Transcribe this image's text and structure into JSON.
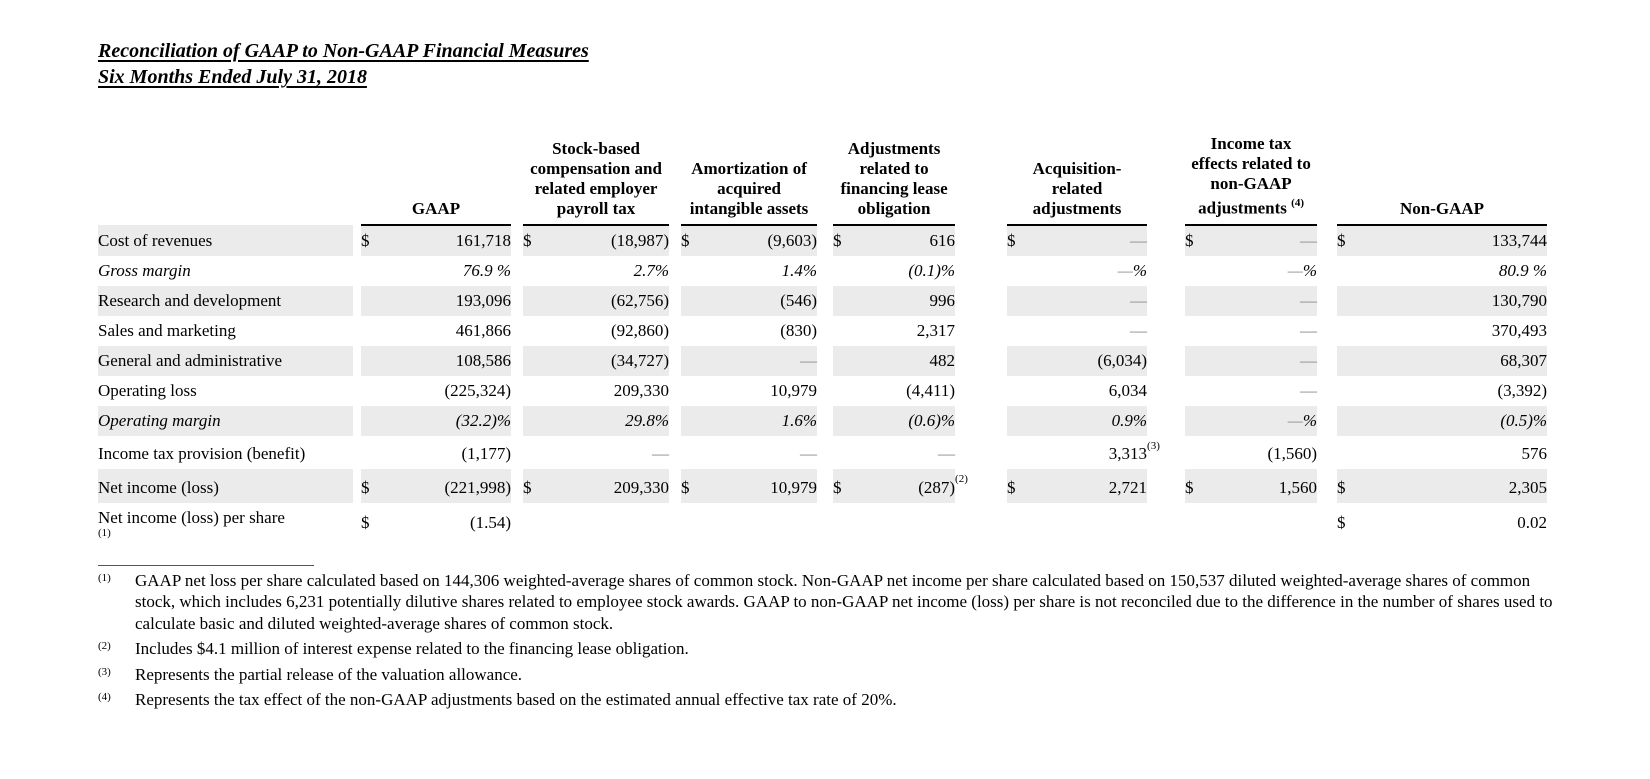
{
  "page": {
    "title_line1": "Reconciliation of GAAP to Non-GAAP Financial Measures",
    "title_line2": "Six Months Ended July 31, 2018"
  },
  "colors": {
    "row_stripe": "#ebebeb",
    "zero_dash": "#8a8a8a",
    "text": "#000000"
  },
  "table": {
    "column_headers": {
      "gaap": "GAAP",
      "sbc": "Stock-based compensation and related employer payroll tax",
      "amort": "Amortization of acquired intangible assets",
      "fin": "Adjustments related to financing lease obligation",
      "acq": "Acquisition-related adjustments",
      "tax": "Income tax effects related to non-GAAP adjustments",
      "tax_sup": "(4)",
      "nongaap": "Non-GAAP"
    },
    "rows": [
      {
        "label": "Cost of revenues",
        "gaap_d": "$",
        "gaap": "161,718",
        "sbc_d": "$",
        "sbc": "(18,987)",
        "amort_d": "$",
        "amort": "(9,603)",
        "fin_d": "$",
        "fin": "616",
        "acq_d": "$",
        "acq": "—",
        "tax_d": "$",
        "tax": "—",
        "ng_d": "$",
        "ng": "133,744"
      },
      {
        "label": "Gross margin",
        "gaap": "76.9 %",
        "sbc": "2.7%",
        "amort": "1.4%",
        "fin": "(0.1)%",
        "acq": "—%",
        "tax": "—%",
        "ng": "80.9 %"
      },
      {
        "label": "Research and development",
        "gaap": "193,096",
        "sbc": "(62,756)",
        "amort": "(546)",
        "fin": "996",
        "acq": "—",
        "tax": "—",
        "ng": "130,790"
      },
      {
        "label": "Sales and marketing",
        "gaap": "461,866",
        "sbc": "(92,860)",
        "amort": "(830)",
        "fin": "2,317",
        "acq": "—",
        "tax": "—",
        "ng": "370,493"
      },
      {
        "label": "General and administrative",
        "gaap": "108,586",
        "sbc": "(34,727)",
        "amort": "—",
        "fin": "482",
        "acq": "(6,034)",
        "tax": "—",
        "ng": "68,307"
      },
      {
        "label": "Operating loss",
        "gaap": "(225,324)",
        "sbc": "209,330",
        "amort": "10,979",
        "fin": "(4,411)",
        "acq": "6,034",
        "tax": "—",
        "ng": "(3,392)"
      },
      {
        "label": "Operating margin",
        "gaap": "(32.2)%",
        "sbc": "29.8%",
        "amort": "1.6%",
        "fin": "(0.6)%",
        "acq": "0.9%",
        "tax": "—%",
        "ng": "(0.5)%"
      },
      {
        "label": "Income tax provision (benefit)",
        "gaap": "(1,177)",
        "sbc": "—",
        "amort": "—",
        "fin": "—",
        "acq": "3,313",
        "acq_fn": "(3)",
        "tax": "(1,560)",
        "ng": "576"
      },
      {
        "label": "Net income (loss)",
        "gaap_d": "$",
        "gaap": "(221,998)",
        "sbc_d": "$",
        "sbc": "209,330",
        "amort_d": "$",
        "amort": "10,979",
        "fin_d": "$",
        "fin": "(287)",
        "fin_fn": "(2)",
        "acq_d": "$",
        "acq": "2,721",
        "tax_d": "$",
        "tax": "1,560",
        "ng_d": "$",
        "ng": "2,305"
      },
      {
        "label": "Net income (loss) per share",
        "label_sup": "(1)",
        "gaap_d": "$",
        "gaap": "(1.54)",
        "ng_d": "$",
        "ng": "0.02"
      }
    ]
  },
  "footnotes": [
    {
      "marker": "(1)",
      "text": "GAAP net loss per share calculated based on 144,306 weighted-average shares of common stock. Non-GAAP net income per share calculated based on 150,537 diluted weighted-average shares of common stock, which includes 6,231 potentially dilutive shares related to employee stock awards. GAAP to non-GAAP net income (loss) per share is not reconciled due to the difference in the number of shares used to calculate basic and diluted weighted-average shares of common stock."
    },
    {
      "marker": "(2)",
      "text": "Includes $4.1 million of interest expense related to the financing lease obligation."
    },
    {
      "marker": "(3)",
      "text": "Represents the partial release of the valuation allowance."
    },
    {
      "marker": "(4)",
      "text": "Represents the tax effect of the non-GAAP adjustments based on the estimated annual effective tax rate of 20%."
    }
  ]
}
